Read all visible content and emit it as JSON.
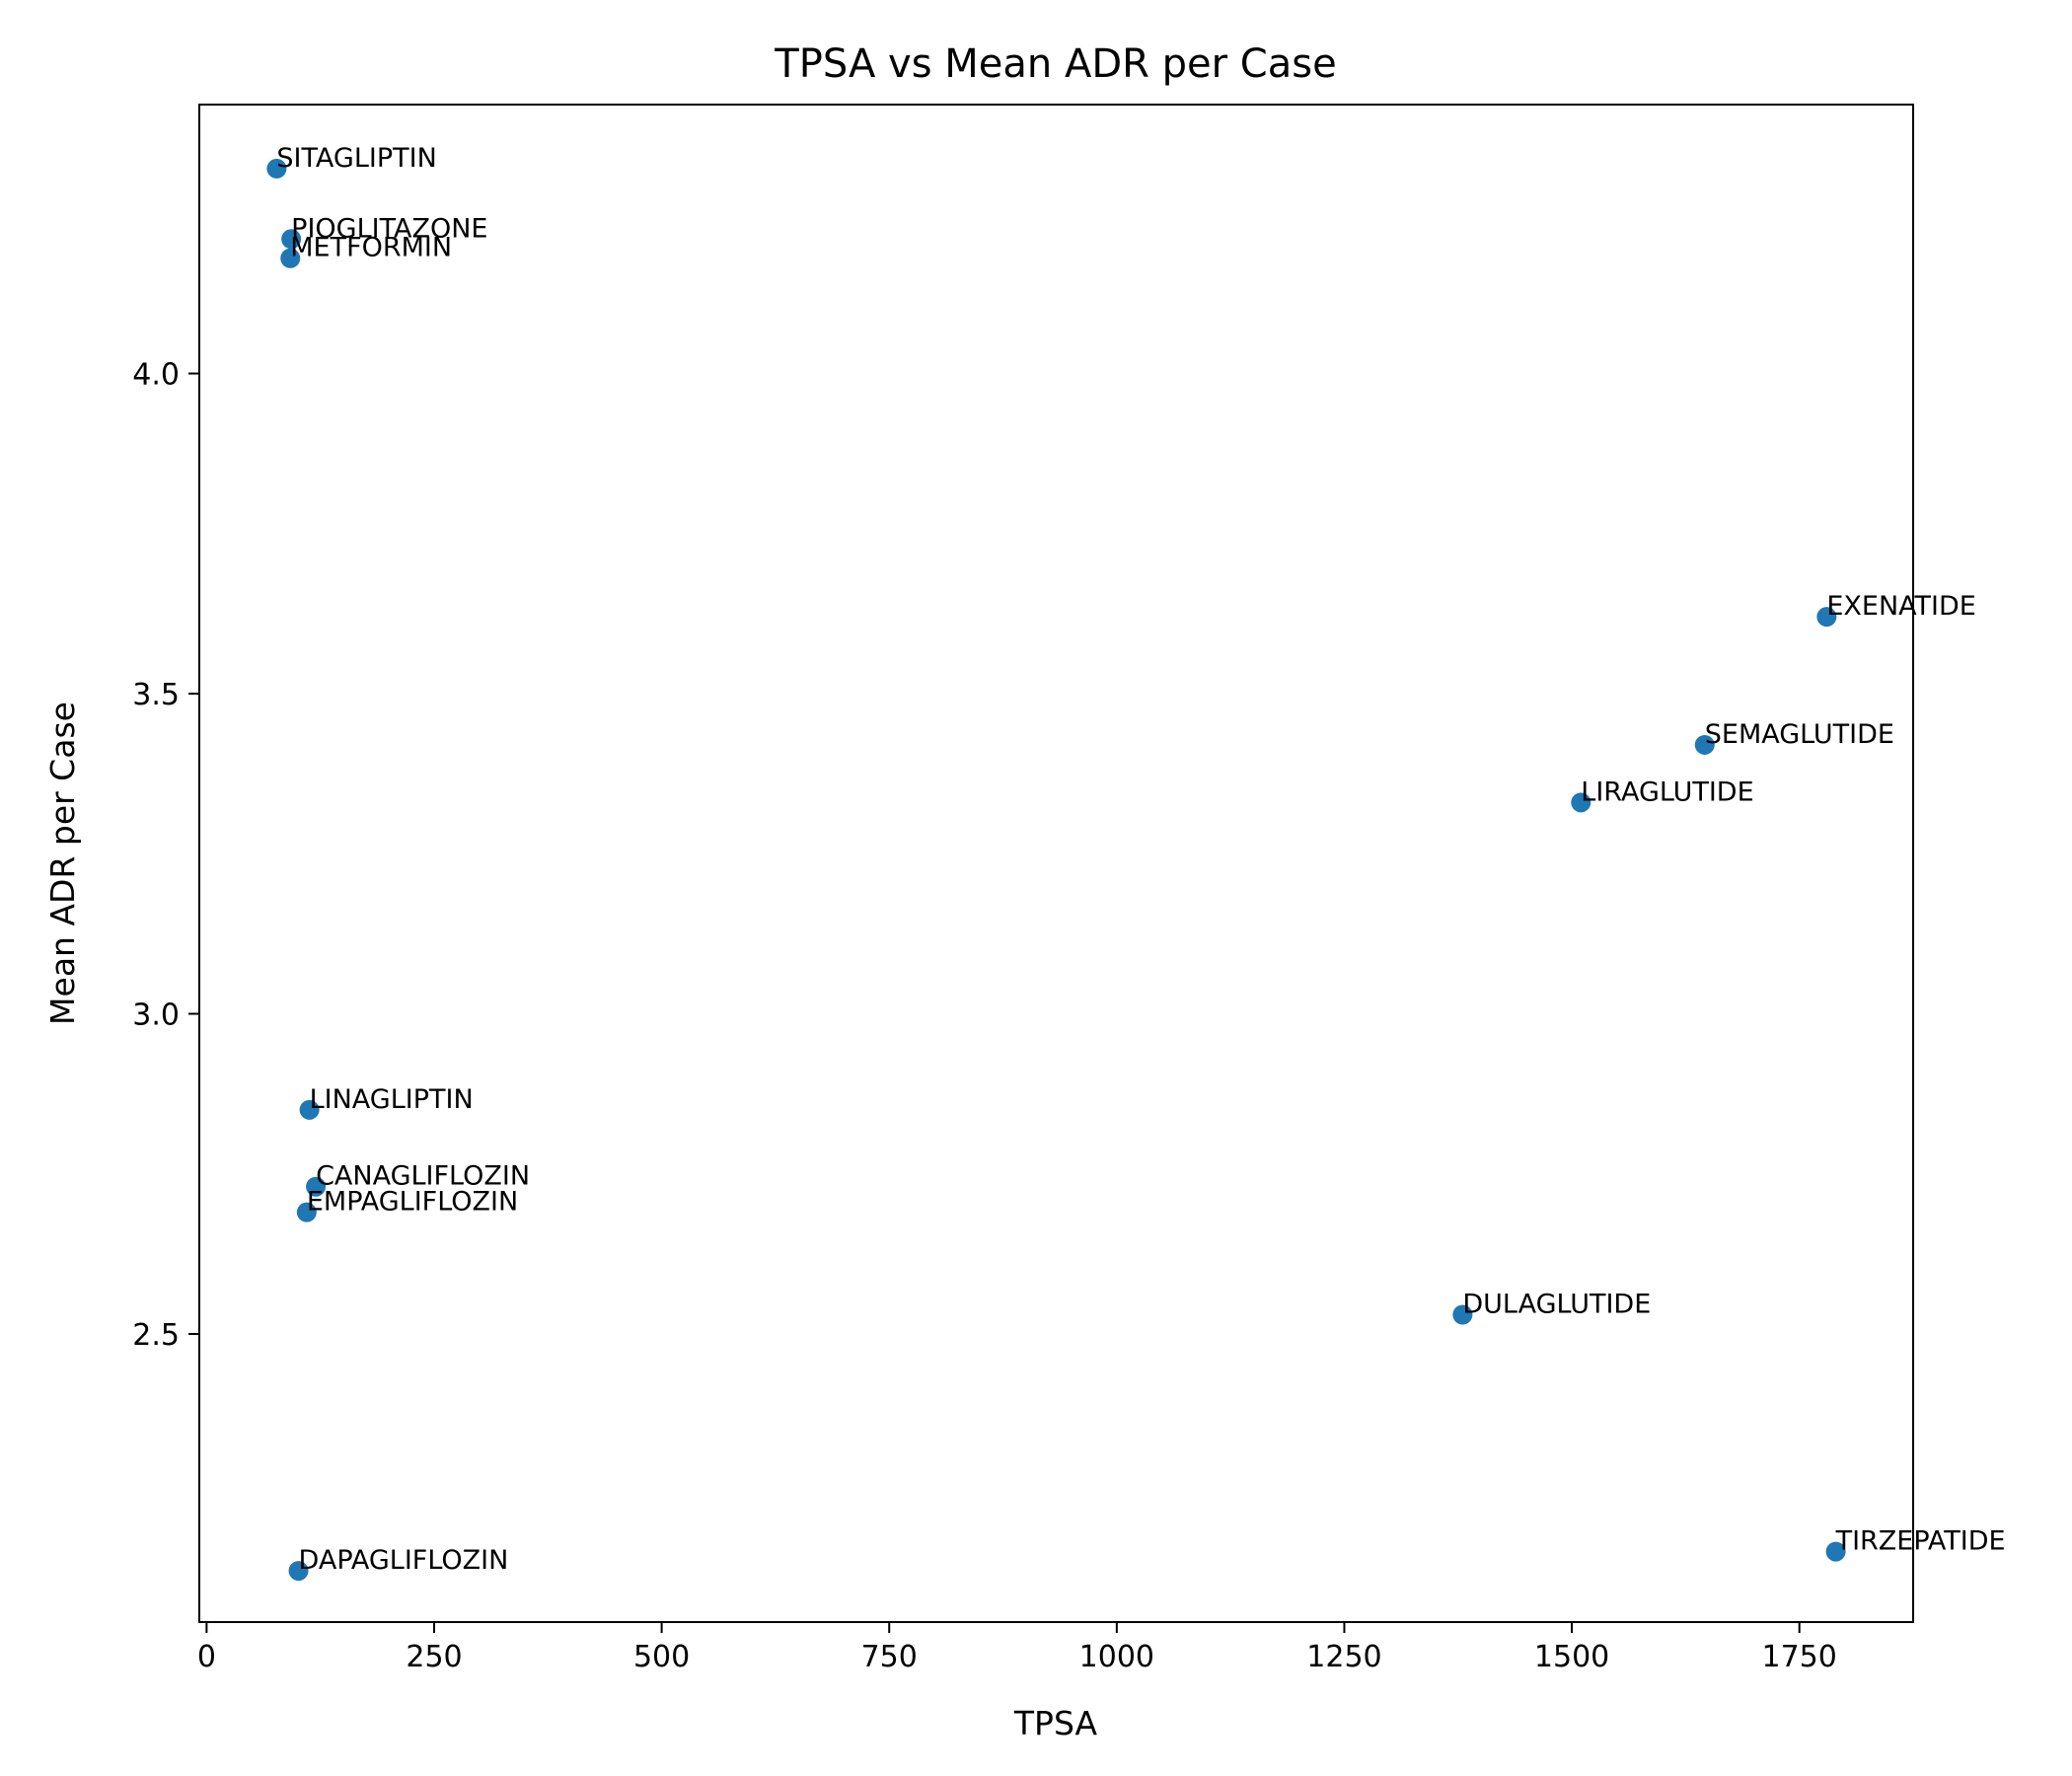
{
  "chart_data": {
    "type": "scatter",
    "title": "TPSA vs Mean ADR per Case",
    "xlabel": "TPSA",
    "ylabel": "Mean ADR per Case",
    "xlim": [
      -8,
      1875
    ],
    "ylim": [
      2.05,
      4.42
    ],
    "xticks": [
      0,
      250,
      500,
      750,
      1000,
      1250,
      1500,
      1750
    ],
    "yticks": [
      2.5,
      3.0,
      3.5,
      4.0
    ],
    "xtick_labels": [
      "0",
      "250",
      "500",
      "750",
      "1000",
      "1250",
      "1500",
      "1750"
    ],
    "ytick_labels": [
      "2.5",
      "3.0",
      "3.5",
      "4.0"
    ],
    "grid": false,
    "legend": "none",
    "marker_color": "#1f77b4",
    "points": [
      {
        "label": "SITAGLIPTIN",
        "x": 77,
        "y": 4.32
      },
      {
        "label": "PIOGLITAZONE",
        "x": 93,
        "y": 4.21
      },
      {
        "label": "METFORMIN",
        "x": 92,
        "y": 4.18
      },
      {
        "label": "EXENATIDE",
        "x": 1780,
        "y": 3.62
      },
      {
        "label": "SEMAGLUTIDE",
        "x": 1646,
        "y": 3.42
      },
      {
        "label": "LIRAGLUTIDE",
        "x": 1510,
        "y": 3.33
      },
      {
        "label": "LINAGLIPTIN",
        "x": 113,
        "y": 2.85
      },
      {
        "label": "CANAGLIFLOZIN",
        "x": 120,
        "y": 2.73
      },
      {
        "label": "EMPAGLIFLOZIN",
        "x": 110,
        "y": 2.69
      },
      {
        "label": "DULAGLUTIDE",
        "x": 1380,
        "y": 2.53
      },
      {
        "label": "TIRZEPATIDE",
        "x": 1790,
        "y": 2.16
      },
      {
        "label": "DAPAGLIFLOZIN",
        "x": 101,
        "y": 2.13
      }
    ]
  }
}
